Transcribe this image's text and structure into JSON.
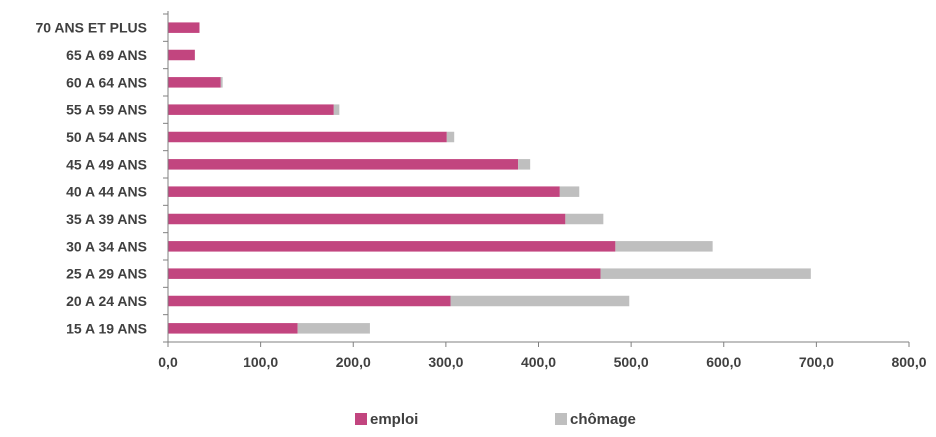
{
  "chart_data": {
    "type": "bar",
    "orientation": "horizontal",
    "stacked": true,
    "categories": [
      "70 ANS ET PLUS",
      "65 A 69 ANS",
      "60 A 64 ANS",
      "55 A 59 ANS",
      "50 A 54 ANS",
      "45 A 49 ANS",
      "40 A 44 ANS",
      "35 A 39 ANS",
      "30 A 34 ANS",
      "25 A 29 ANS",
      "20 A 24 ANS",
      "15 A 19 ANS"
    ],
    "series": [
      {
        "name": "emploi",
        "color": "#c2457f",
        "values": [
          34,
          29,
          57,
          179,
          301,
          378,
          423,
          429,
          483,
          467,
          305,
          140
        ]
      },
      {
        "name": "chômage",
        "color": "#bfbfbf",
        "values": [
          0,
          0,
          2,
          6,
          8,
          13,
          21,
          41,
          105,
          227,
          193,
          78
        ]
      }
    ],
    "xlim": [
      0,
      800
    ],
    "xticks": [
      0,
      100,
      200,
      300,
      400,
      500,
      600,
      700,
      800
    ],
    "xtick_labels": [
      "0,0",
      "100,0",
      "200,0",
      "300,0",
      "400,0",
      "500,0",
      "600,0",
      "700,0",
      "800,0"
    ],
    "title": "",
    "xlabel": "",
    "ylabel": "",
    "grid": false,
    "legend_position": "bottom"
  }
}
